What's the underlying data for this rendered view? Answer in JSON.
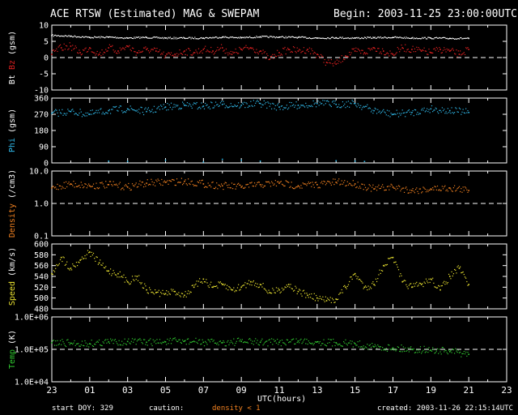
{
  "header": {
    "title": "ACE RTSW (Estimated) MAG & SWEPAM",
    "begin": "Begin: 2003-11-25 23:00:00UTC"
  },
  "footer": {
    "start_doy": "start DOY: 329",
    "caution": "caution:",
    "density_note": "density < 1",
    "created": "created: 2003-11-26 22:15:14UTC"
  },
  "colors": {
    "bt": "#ffffff",
    "bz": "#e02020",
    "phi": "#30b8e8",
    "density": "#f08020",
    "speed": "#e8e030",
    "temp": "#30c830"
  },
  "chart_data": {
    "type": "scatter",
    "x_axis": {
      "label": "UTC(hours)",
      "ticks": [
        "23",
        "01",
        "03",
        "05",
        "07",
        "09",
        "11",
        "13",
        "15",
        "17",
        "19",
        "21",
        "23"
      ],
      "range_hours": [
        0,
        24
      ]
    },
    "panels": [
      {
        "id": "mag",
        "ylabel_parts": [
          {
            "text": "Bt",
            "color": "#ffffff"
          },
          {
            "text": " Bz",
            "color": "#e02020"
          },
          {
            "text": " (gsm)",
            "color": "#ffffff"
          }
        ],
        "scale": "linear",
        "ylim": [
          -10,
          10
        ],
        "ticks": [
          {
            "v": 10,
            "t": "10"
          },
          {
            "v": 5,
            "t": "5"
          },
          {
            "v": 0,
            "t": "0"
          },
          {
            "v": -5,
            "t": "-5"
          },
          {
            "v": -10,
            "t": "-10"
          }
        ],
        "ref_line": 0,
        "series": [
          {
            "name": "Bt",
            "color": "#ffffff",
            "points": [
              [
                0,
                6.8
              ],
              [
                1,
                6.6
              ],
              [
                2,
                6.2
              ],
              [
                3,
                6.3
              ],
              [
                4,
                6.0
              ],
              [
                5,
                6.2
              ],
              [
                6,
                6.0
              ],
              [
                7,
                6.0
              ],
              [
                8,
                6.0
              ],
              [
                9,
                6.3
              ],
              [
                10,
                6.1
              ],
              [
                11,
                6.4
              ],
              [
                12,
                6.3
              ],
              [
                13,
                6.2
              ],
              [
                14,
                6.0
              ],
              [
                15,
                6.1
              ],
              [
                16,
                6.0
              ],
              [
                17,
                6.1
              ],
              [
                18,
                6.2
              ],
              [
                19,
                6.0
              ],
              [
                20,
                6.0
              ],
              [
                21,
                5.9
              ],
              [
                22,
                5.9
              ]
            ]
          },
          {
            "name": "Bz",
            "color": "#e02020",
            "points": [
              [
                0,
                1.0
              ],
              [
                0.5,
                3.0
              ],
              [
                1,
                3.5
              ],
              [
                1.5,
                1.5
              ],
              [
                2,
                3.0
              ],
              [
                2.5,
                1.0
              ],
              [
                3,
                3.0
              ],
              [
                3.5,
                2.0
              ],
              [
                4,
                3.5
              ],
              [
                4.5,
                1.5
              ],
              [
                5,
                2.5
              ],
              [
                5.5,
                2.0
              ],
              [
                6,
                0.5
              ],
              [
                6.5,
                1.0
              ],
              [
                7,
                2.0
              ],
              [
                7.5,
                1.5
              ],
              [
                8,
                2.5
              ],
              [
                8.5,
                2.0
              ],
              [
                9,
                3.0
              ],
              [
                9.5,
                1.0
              ],
              [
                10,
                2.5
              ],
              [
                10.5,
                3.0
              ],
              [
                11,
                2.0
              ],
              [
                11.5,
                -0.5
              ],
              [
                12,
                1.5
              ],
              [
                12.5,
                2.5
              ],
              [
                13,
                2.0
              ],
              [
                13.5,
                2.5
              ],
              [
                14,
                1.0
              ],
              [
                14.5,
                -1.5
              ],
              [
                15,
                -2.0
              ],
              [
                15.5,
                0.5
              ],
              [
                16,
                2.0
              ],
              [
                16.5,
                1.5
              ],
              [
                17,
                3.0
              ],
              [
                17.5,
                2.0
              ],
              [
                18,
                1.0
              ],
              [
                18.5,
                3.0
              ],
              [
                19,
                2.5
              ],
              [
                19.5,
                2.0
              ],
              [
                20,
                1.5
              ],
              [
                20.5,
                2.5
              ],
              [
                21,
                2.0
              ],
              [
                21.5,
                1.0
              ],
              [
                22,
                2.5
              ]
            ]
          }
        ]
      },
      {
        "id": "phi",
        "ylabel_parts": [
          {
            "text": "Phi",
            "color": "#30b8e8"
          },
          {
            "text": " (gsm)",
            "color": "#ffffff"
          }
        ],
        "scale": "linear",
        "ylim": [
          0,
          360
        ],
        "ticks": [
          {
            "v": 360,
            "t": "360"
          },
          {
            "v": 270,
            "t": "270"
          },
          {
            "v": 180,
            "t": "180"
          },
          {
            "v": 90,
            "t": "90"
          },
          {
            "v": 0,
            "t": "0"
          }
        ],
        "series": [
          {
            "name": "Phi",
            "color": "#30b8e8",
            "points": [
              [
                0,
                275
              ],
              [
                1,
                285
              ],
              [
                2,
                270
              ],
              [
                3,
                290
              ],
              [
                4,
                300
              ],
              [
                5,
                285
              ],
              [
                6,
                310
              ],
              [
                7,
                320
              ],
              [
                8,
                315
              ],
              [
                9,
                325
              ],
              [
                10,
                320
              ],
              [
                11,
                330
              ],
              [
                12,
                310
              ],
              [
                13,
                320
              ],
              [
                14,
                330
              ],
              [
                15,
                325
              ],
              [
                16,
                330
              ],
              [
                17,
                290
              ],
              [
                18,
                270
              ],
              [
                19,
                280
              ],
              [
                20,
                300
              ],
              [
                21,
                290
              ],
              [
                22,
                280
              ]
            ]
          },
          {
            "name": "Phi-low",
            "color": "#30b8e8",
            "points": [
              [
                3,
                10
              ],
              [
                4,
                8
              ],
              [
                6,
                15
              ],
              [
                8,
                5
              ],
              [
                9,
                20
              ],
              [
                10,
                15
              ],
              [
                11,
                10
              ],
              [
                15,
                12
              ],
              [
                16,
                10
              ],
              [
                16.5,
                8
              ]
            ]
          }
        ]
      },
      {
        "id": "density",
        "ylabel_parts": [
          {
            "text": "Density",
            "color": "#f08020"
          },
          {
            "text": " (/cm3)",
            "color": "#ffffff"
          }
        ],
        "scale": "log",
        "ylim": [
          0.1,
          10
        ],
        "ticks": [
          {
            "v": 10,
            "t": "10.0"
          },
          {
            "v": 1,
            "t": "1.0"
          },
          {
            "v": 0.1,
            "t": "0.1"
          }
        ],
        "ref_line": 1,
        "series": [
          {
            "name": "Density",
            "color": "#f08020",
            "points": [
              [
                0,
                3.0
              ],
              [
                1,
                4.0
              ],
              [
                2,
                3.5
              ],
              [
                3,
                3.8
              ],
              [
                4,
                3.2
              ],
              [
                5,
                4.2
              ],
              [
                6,
                4.5
              ],
              [
                7,
                4.8
              ],
              [
                8,
                4.0
              ],
              [
                9,
                3.5
              ],
              [
                10,
                3.2
              ],
              [
                11,
                3.8
              ],
              [
                12,
                4.2
              ],
              [
                13,
                3.5
              ],
              [
                14,
                3.8
              ],
              [
                15,
                4.5
              ],
              [
                16,
                4.0
              ],
              [
                17,
                2.8
              ],
              [
                18,
                3.2
              ],
              [
                19,
                2.5
              ],
              [
                20,
                2.8
              ],
              [
                21,
                3.0
              ],
              [
                22,
                2.5
              ]
            ]
          }
        ]
      },
      {
        "id": "speed",
        "ylabel_parts": [
          {
            "text": "Speed",
            "color": "#e8e030"
          },
          {
            "text": " (km/s)",
            "color": "#ffffff"
          }
        ],
        "scale": "linear",
        "ylim": [
          480,
          600
        ],
        "ticks": [
          {
            "v": 600,
            "t": "600"
          },
          {
            "v": 580,
            "t": "580"
          },
          {
            "v": 560,
            "t": "560"
          },
          {
            "v": 540,
            "t": "540"
          },
          {
            "v": 520,
            "t": "520"
          },
          {
            "v": 500,
            "t": "500"
          },
          {
            "v": 480,
            "t": "480"
          }
        ],
        "series": [
          {
            "name": "Speed",
            "color": "#e8e030",
            "points": [
              [
                0,
                545
              ],
              [
                0.5,
                575
              ],
              [
                1,
                555
              ],
              [
                1.5,
                570
              ],
              [
                2,
                585
              ],
              [
                2.5,
                565
              ],
              [
                3,
                550
              ],
              [
                3.5,
                545
              ],
              [
                4,
                530
              ],
              [
                4.5,
                540
              ],
              [
                5,
                515
              ],
              [
                5.5,
                510
              ],
              [
                6,
                508
              ],
              [
                6.5,
                512
              ],
              [
                7,
                505
              ],
              [
                7.5,
                520
              ],
              [
                8,
                535
              ],
              [
                8.5,
                520
              ],
              [
                9,
                525
              ],
              [
                9.5,
                515
              ],
              [
                10,
                520
              ],
              [
                10.5,
                530
              ],
              [
                11,
                525
              ],
              [
                11.5,
                510
              ],
              [
                12,
                515
              ],
              [
                12.5,
                525
              ],
              [
                13,
                512
              ],
              [
                13.5,
                505
              ],
              [
                14,
                500
              ],
              [
                14.5,
                495
              ],
              [
                15,
                498
              ],
              [
                15.5,
                520
              ],
              [
                16,
                545
              ],
              [
                16.5,
                520
              ],
              [
                17,
                525
              ],
              [
                17.5,
                560
              ],
              [
                18,
                575
              ],
              [
                18.5,
                530
              ],
              [
                19,
                520
              ],
              [
                19.5,
                525
              ],
              [
                20,
                535
              ],
              [
                20.5,
                515
              ],
              [
                21,
                540
              ],
              [
                21.5,
                555
              ],
              [
                22,
                525
              ]
            ]
          }
        ]
      },
      {
        "id": "temp",
        "ylabel_parts": [
          {
            "text": "Temp",
            "color": "#30c830"
          },
          {
            "text": " (K)",
            "color": "#ffffff"
          }
        ],
        "scale": "log",
        "ylim": [
          10000,
          1000000
        ],
        "ticks": [
          {
            "v": 1000000,
            "t": "1.0E+06"
          },
          {
            "v": 100000,
            "t": "1.0E+05"
          },
          {
            "v": 10000,
            "t": "1.0E+04"
          }
        ],
        "ref_line": 100000,
        "series": [
          {
            "name": "Temp",
            "color": "#30c830",
            "points": [
              [
                0,
                160000
              ],
              [
                1,
                155000
              ],
              [
                2,
                150000
              ],
              [
                3,
                170000
              ],
              [
                4,
                175000
              ],
              [
                5,
                165000
              ],
              [
                6,
                170000
              ],
              [
                7,
                180000
              ],
              [
                8,
                165000
              ],
              [
                9,
                160000
              ],
              [
                10,
                175000
              ],
              [
                11,
                165000
              ],
              [
                12,
                165000
              ],
              [
                13,
                180000
              ],
              [
                14,
                170000
              ],
              [
                15,
                160000
              ],
              [
                16,
                150000
              ],
              [
                17,
                120000
              ],
              [
                18,
                110000
              ],
              [
                19,
                100000
              ],
              [
                20,
                95000
              ],
              [
                21,
                85000
              ],
              [
                22,
                70000
              ]
            ]
          }
        ]
      }
    ]
  }
}
